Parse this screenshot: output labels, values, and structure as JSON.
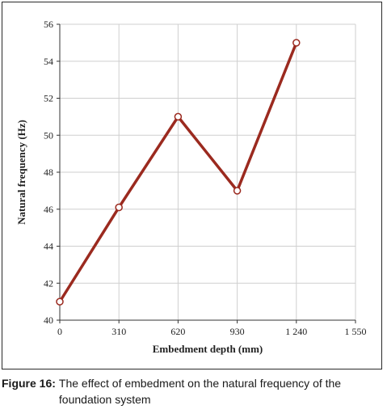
{
  "chart_data": {
    "type": "line",
    "xlabel": "Embedment depth (mm)",
    "ylabel": "Natural frequency (Hz)",
    "xlim": [
      0,
      1550
    ],
    "ylim": [
      40,
      56
    ],
    "xticks": [
      0,
      310,
      620,
      930,
      1240,
      1550
    ],
    "xtick_labels": [
      "0",
      "310",
      "620",
      "930",
      "1 240",
      "1 550"
    ],
    "yticks": [
      40,
      42,
      44,
      46,
      48,
      50,
      52,
      54,
      56
    ],
    "ytick_labels": [
      "40",
      "42",
      "44",
      "46",
      "48",
      "50",
      "52",
      "54",
      "56"
    ],
    "grid": true,
    "series": [
      {
        "x": [
          0,
          310,
          620,
          930,
          1240
        ],
        "y": [
          41,
          46.1,
          51,
          47,
          55
        ],
        "color": "#9b2a1f",
        "marker": "open-circle"
      }
    ]
  },
  "caption": {
    "label": "Figure 16:",
    "text": "The effect of embedment on the natural frequency of the foundation system"
  }
}
